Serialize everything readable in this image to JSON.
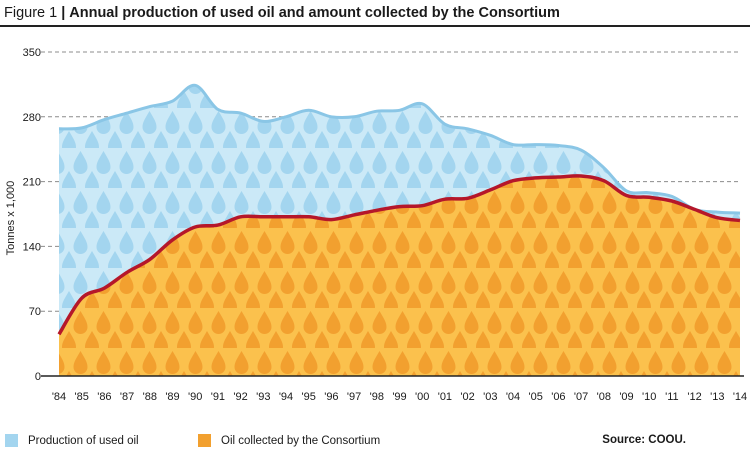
{
  "figure": {
    "label": "Figure 1",
    "title": "Annual production of used oil and amount collected by the Consortium",
    "source": "Source: COOU."
  },
  "colors": {
    "production_fill": "#cbe9f7",
    "production_drop": "#a3d5ef",
    "production_line": "#8ac6e6",
    "collected_fill": "#fbc14d",
    "collected_drop": "#f2a02f",
    "collected_line": "#b5172a",
    "grid": "#8c8c8c",
    "axis": "#222222"
  },
  "chart_data": {
    "type": "area",
    "ylabel": "Tonnes x 1,000",
    "ylim": [
      0,
      350
    ],
    "yticks": [
      0,
      70,
      140,
      210,
      280,
      350
    ],
    "grid": true,
    "legend_position": "bottom",
    "x_tick_labels": [
      "'84",
      "'85",
      "'86",
      "'87",
      "'88",
      "'89",
      "'90",
      "'91",
      "'92",
      "'93",
      "'94",
      "'95",
      "'96",
      "'97",
      "'98",
      "'99",
      "'00",
      "'01",
      "'02",
      "'03",
      "'04",
      "'05",
      "'06",
      "'07",
      "'08",
      "'09",
      "'10",
      "'11",
      "'12",
      "'13",
      "'14"
    ],
    "x": [
      1984,
      1985,
      1986,
      1987,
      1988,
      1989,
      1990,
      1991,
      1992,
      1993,
      1994,
      1995,
      1996,
      1997,
      1998,
      1999,
      2000,
      2001,
      2002,
      2003,
      2004,
      2005,
      2006,
      2007,
      2008,
      2009,
      2010,
      2011,
      2012,
      2013,
      2014
    ],
    "series": [
      {
        "name": "Production of used oil",
        "values": [
          267,
          268,
          277,
          284,
          291,
          297,
          314,
          288,
          284,
          275,
          280,
          287,
          280,
          280,
          286,
          287,
          294,
          272,
          267,
          260,
          250,
          250,
          249,
          244,
          225,
          200,
          198,
          194,
          180,
          177,
          176
        ]
      },
      {
        "name": "Oil collected by the Consortium",
        "values": [
          45,
          84,
          95,
          112,
          126,
          147,
          161,
          163,
          172,
          172,
          172,
          172,
          169,
          174,
          179,
          183,
          184,
          191,
          192,
          201,
          211,
          214,
          215,
          216,
          211,
          195,
          193,
          189,
          180,
          171,
          168
        ]
      }
    ]
  }
}
